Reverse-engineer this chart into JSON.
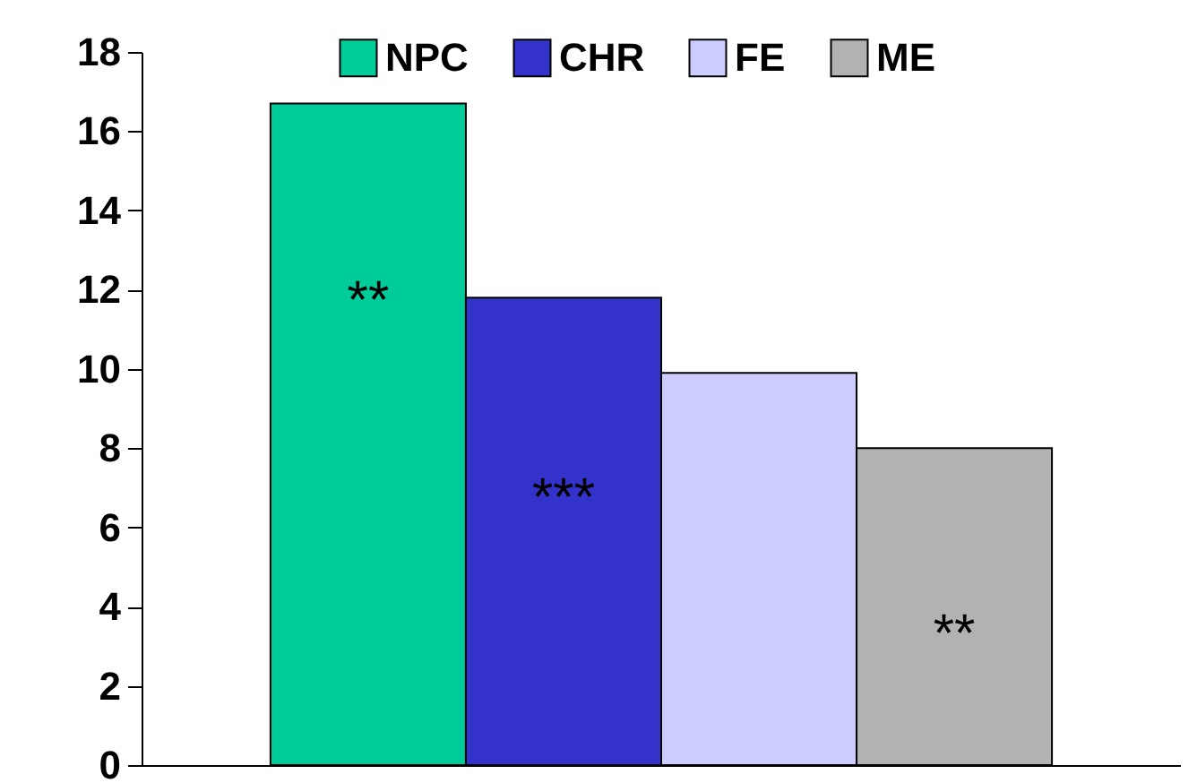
{
  "chart_data": {
    "type": "bar",
    "categories": [
      null
    ],
    "series": [
      {
        "name": "NPC",
        "color": "#00cc99",
        "values": [
          16.7
        ],
        "value_labels": [
          "**"
        ]
      },
      {
        "name": "CHR",
        "color": "#3333cc",
        "values": [
          11.8
        ],
        "value_labels": [
          "***"
        ]
      },
      {
        "name": "FE",
        "color": "#ccccff",
        "values": [
          9.9
        ],
        "value_labels": [
          null
        ]
      },
      {
        "name": "ME",
        "color": "#b2b2b2",
        "values": [
          8.0
        ],
        "value_labels": [
          "**"
        ]
      }
    ],
    "ylim": [
      0,
      18
    ],
    "yticks": [
      0,
      2,
      4,
      6,
      8,
      10,
      12,
      14,
      16,
      18
    ],
    "grid": false,
    "legend": "top right",
    "tick_labels": "y"
  }
}
